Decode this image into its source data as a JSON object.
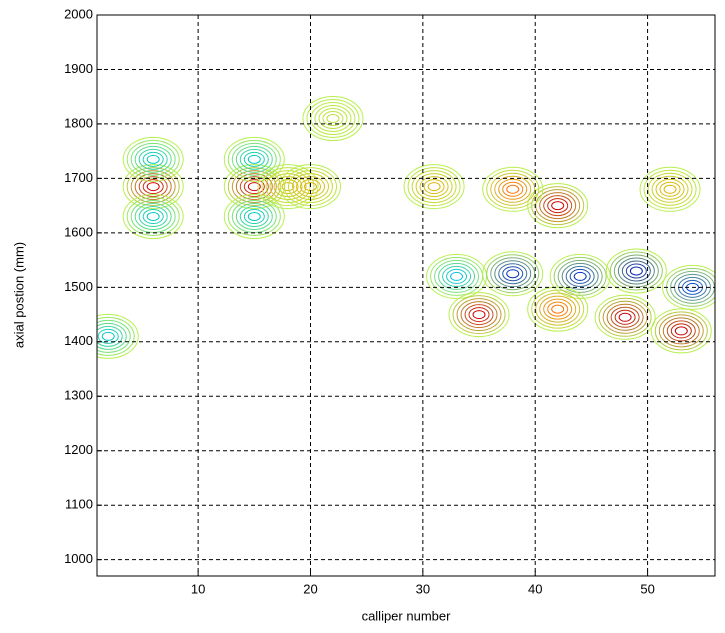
{
  "chart_data": {
    "type": "contour",
    "xlabel": "calliper number",
    "ylabel": "axial postion (mm)",
    "xlim": [
      1,
      56
    ],
    "ylim": [
      970,
      2000
    ],
    "xticks": [
      10,
      20,
      30,
      40,
      50
    ],
    "yticks": [
      1000,
      1100,
      1200,
      1300,
      1400,
      1500,
      1600,
      1700,
      1800,
      1900,
      2000
    ],
    "grid": true,
    "features": {
      "x": [
        2,
        6,
        6,
        6,
        15,
        15,
        15,
        18,
        20,
        33,
        38,
        44,
        49,
        54,
        35,
        42,
        48,
        53,
        42,
        38,
        31,
        22,
        52
      ],
      "y": [
        1410,
        1685,
        1735,
        1630,
        1685,
        1735,
        1630,
        1685,
        1685,
        1520,
        1525,
        1520,
        1530,
        1500,
        1450,
        1460,
        1445,
        1420,
        1650,
        1680,
        1685,
        1810,
        1680
      ],
      "colors": [
        "#00c8c8",
        "#d00000",
        "#00c8c8",
        "#00c8c8",
        "#d00000",
        "#00c8c8",
        "#00c8c8",
        "#e0b000",
        "#e0b000",
        "#00c0e0",
        "#0030c0",
        "#0030c0",
        "#0020b0",
        "#0040d0",
        "#d00000",
        "#ff7000",
        "#c00000",
        "#c00000",
        "#d00000",
        "#ff7000",
        "#e0b000",
        "#c0e040",
        "#e0b000"
      ]
    }
  }
}
